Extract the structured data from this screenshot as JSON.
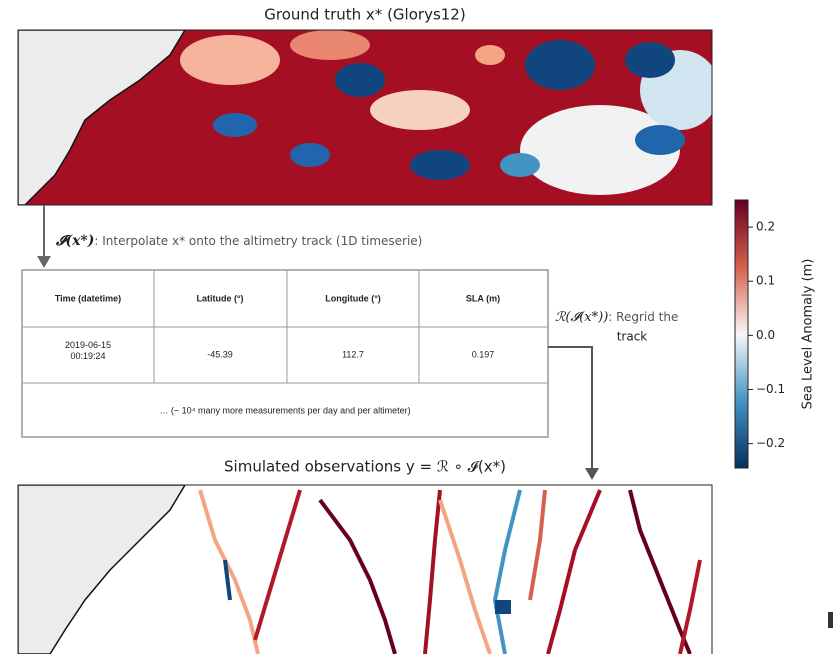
{
  "top_title": "Ground truth x* (Glorys12)",
  "interp_note": {
    "symbol": "𝓘(x*)",
    "text": ": Interpolate x* onto the altimetry track (1D timeserie)"
  },
  "table": {
    "header": [
      "Time (datetime)",
      "Latitude (°)",
      "Longitude (°)",
      "SLA (m)"
    ],
    "rows": [
      [
        "2019-06-15 00:19:24",
        "-45.39",
        "112.7",
        "0.197"
      ]
    ],
    "footer": "… (~ 10⁴ many more measurements per day and per altimeter)"
  },
  "regrid_note": {
    "symbol": "ℛ(𝓘(x*))",
    "text": ": Regrid the",
    "text2": "track"
  },
  "bottom_title": "Simulated observations y = ℛ ∘ 𝓘(x*)",
  "colorbar": {
    "label": "Sea Level Anomaly (m)",
    "lim": [
      -0.245,
      0.25
    ],
    "ticks": [
      {
        "value": -0.2,
        "label": "−0.2"
      },
      {
        "value": -0.1,
        "label": "−0.1"
      },
      {
        "value": 0,
        "label": "0.0"
      },
      0.1,
      0.2
    ],
    "colors": [
      "#053061",
      "#4393c3",
      "#f7f7f7",
      "#d6604d",
      "#67001f"
    ]
  }
}
